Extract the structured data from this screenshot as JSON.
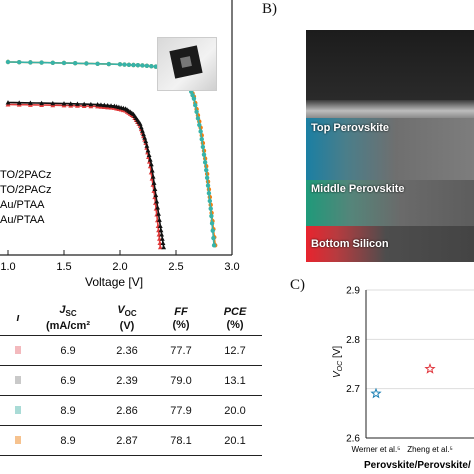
{
  "panel_labels": {
    "b": "B)",
    "c": "C)"
  },
  "jv_chart": {
    "xlabel": "Voltage [V]",
    "x_ticks": [
      "1.0",
      "1.5",
      "2.0",
      "2.5",
      "3.0"
    ],
    "legend": [
      "TO/2PACz",
      "TO/2PACz",
      "Au/PTAA",
      "Au/PTAA"
    ]
  },
  "table": {
    "headers": [
      {
        "l1": "",
        "l2": ""
      },
      {
        "l1": "J",
        "sub": "SC",
        "l2": "(mA/cm²"
      },
      {
        "l1": "V",
        "sub": "OC",
        "l2": "(V)"
      },
      {
        "l1": "FF",
        "l2": "(%)"
      },
      {
        "l1": "PCE",
        "l2": "(%)"
      }
    ],
    "rows": [
      [
        "6.9",
        "2.36",
        "77.7",
        "12.7"
      ],
      [
        "6.9",
        "2.39",
        "79.0",
        "13.1"
      ],
      [
        "8.9",
        "2.86",
        "77.9",
        "20.0"
      ],
      [
        "8.9",
        "2.87",
        "78.1",
        "20.1"
      ]
    ],
    "row_colors": [
      "#f3b9bd",
      "#c9c9c9",
      "#a9dbd6",
      "#f6c28e"
    ]
  },
  "sem": {
    "layers": [
      "Top Perovskite",
      "Middle Perovskite",
      "Bottom Silicon"
    ]
  },
  "voc_chart": {
    "ylabel": "V",
    "ylabel_sub": "OC",
    "ylabel_unit": " [V]",
    "y_ticks": [
      "2.9",
      "2.8",
      "2.7",
      "2.6"
    ],
    "ylim": [
      2.6,
      2.9
    ],
    "categories": [
      "Werner et al.⁵",
      "Zheng et al.⁵"
    ],
    "values": [
      2.69,
      2.74
    ],
    "xlabel": "Perovskite/Perovskite/"
  },
  "chart_data": [
    {
      "type": "line",
      "xlabel": "Voltage [V]",
      "xlim": [
        1.0,
        3.0
      ],
      "series": [
        {
          "color": "#f07f12",
          "points": [
            [
              1.0,
              1.0
            ],
            [
              1.5,
              0.995
            ],
            [
              2.0,
              0.988
            ],
            [
              2.2,
              0.982
            ],
            [
              2.4,
              0.972
            ],
            [
              2.5,
              0.955
            ],
            [
              2.6,
              0.905
            ],
            [
              2.66,
              0.82
            ],
            [
              2.72,
              0.66
            ],
            [
              2.77,
              0.46
            ],
            [
              2.81,
              0.26
            ],
            [
              2.85,
              0.05
            ]
          ]
        },
        {
          "color": "#37b3a8",
          "points": [
            [
              1.0,
              1.0
            ],
            [
              1.5,
              0.995
            ],
            [
              2.0,
              0.988
            ],
            [
              2.2,
              0.982
            ],
            [
              2.4,
              0.972
            ],
            [
              2.5,
              0.952
            ],
            [
              2.6,
              0.9
            ],
            [
              2.66,
              0.81
            ],
            [
              2.72,
              0.64
            ],
            [
              2.77,
              0.44
            ],
            [
              2.81,
              0.24
            ],
            [
              2.84,
              0.05
            ]
          ]
        },
        {
          "color": "#e03a3a",
          "points": [
            [
              1.0,
              0.78
            ],
            [
              1.5,
              0.775
            ],
            [
              1.8,
              0.77
            ],
            [
              1.95,
              0.762
            ],
            [
              2.05,
              0.748
            ],
            [
              2.12,
              0.72
            ],
            [
              2.18,
              0.67
            ],
            [
              2.23,
              0.58
            ],
            [
              2.27,
              0.46
            ],
            [
              2.31,
              0.3
            ],
            [
              2.34,
              0.15
            ],
            [
              2.36,
              0.04
            ]
          ]
        },
        {
          "color": "#111111",
          "points": [
            [
              1.0,
              0.79
            ],
            [
              1.5,
              0.785
            ],
            [
              1.8,
              0.78
            ],
            [
              1.95,
              0.772
            ],
            [
              2.05,
              0.758
            ],
            [
              2.12,
              0.73
            ],
            [
              2.18,
              0.68
            ],
            [
              2.23,
              0.59
            ],
            [
              2.28,
              0.47
            ],
            [
              2.32,
              0.31
            ],
            [
              2.36,
              0.15
            ],
            [
              2.39,
              0.04
            ]
          ]
        }
      ]
    },
    {
      "type": "scatter",
      "categories": [
        "Werner et al.⁵",
        "Zheng et al.⁵"
      ],
      "values": [
        2.69,
        2.74
      ],
      "ylim": [
        2.6,
        2.9
      ],
      "ylabel": "VOC [V]",
      "xlabel": "Perovskite/Perovskite/"
    }
  ]
}
